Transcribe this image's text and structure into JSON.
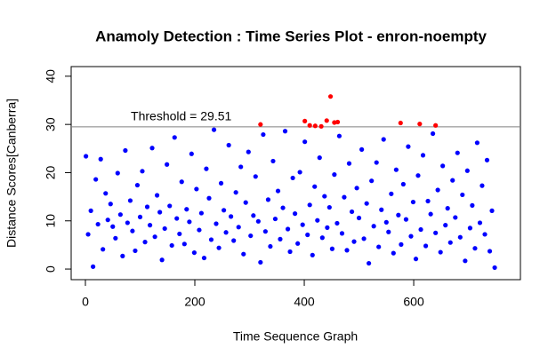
{
  "chart_data": {
    "type": "scatter",
    "title": "Anamoly Detection : Time Series Plot - enron-noempty",
    "x_label": "Time Sequence Graph",
    "y_label": "Distance Scores[Canberra]",
    "color": "#0000ff",
    "above_color": "#ff0000",
    "threshold": 29.51,
    "threshold_label": "Threshold = 29.51",
    "threshold_color": "#ff0000",
    "threshold_line_color": "#808080",
    "x": [
      1,
      5,
      10,
      14,
      19,
      23,
      28,
      32,
      37,
      41,
      46,
      50,
      55,
      59,
      64,
      68,
      73,
      77,
      82,
      86,
      91,
      95,
      100,
      104,
      109,
      113,
      118,
      122,
      127,
      131,
      136,
      140,
      145,
      149,
      154,
      158,
      163,
      167,
      172,
      176,
      181,
      185,
      190,
      194,
      199,
      203,
      208,
      212,
      217,
      221,
      226,
      230,
      235,
      239,
      244,
      248,
      253,
      257,
      262,
      266,
      271,
      275,
      280,
      284,
      289,
      293,
      298,
      302,
      307,
      311,
      316,
      320,
      325,
      329,
      334,
      338,
      343,
      347,
      352,
      356,
      361,
      365,
      370,
      374,
      379,
      383,
      388,
      392,
      397,
      401,
      406,
      410,
      415,
      419,
      424,
      428,
      433,
      437,
      442,
      446,
      451,
      455,
      460,
      464,
      469,
      473,
      478,
      482,
      487,
      491,
      496,
      500,
      505,
      509,
      514,
      518,
      523,
      527,
      532,
      536,
      541,
      545,
      550,
      554,
      559,
      563,
      568,
      572,
      577,
      581,
      586,
      590,
      595,
      599,
      604,
      608,
      613,
      617,
      622,
      626,
      631,
      635,
      640,
      644,
      649,
      653,
      658,
      662,
      667,
      671,
      676,
      680,
      685,
      689,
      694,
      698,
      703,
      707,
      712,
      716,
      721,
      725,
      730,
      734,
      739,
      743,
      748,
      320,
      401,
      410,
      420,
      431,
      441,
      448,
      455,
      461,
      576,
      611,
      640
    ],
    "values": [
      23.4,
      7.2,
      12.1,
      0.5,
      18.6,
      9.3,
      22.8,
      4.1,
      15.7,
      10.2,
      13.5,
      8.8,
      6.4,
      19.9,
      11.3,
      2.7,
      24.6,
      9.6,
      14.2,
      7.9,
      3.8,
      17.4,
      10.8,
      20.3,
      5.6,
      12.9,
      9.1,
      25.1,
      6.7,
      15.3,
      11.8,
      1.9,
      8.4,
      21.7,
      13.1,
      4.9,
      27.3,
      10.5,
      7.3,
      18.1,
      5.2,
      12.4,
      9.8,
      23.9,
      3.4,
      16.6,
      8.1,
      11.6,
      2.3,
      20.8,
      14.7,
      6.1,
      28.9,
      9.4,
      4.4,
      17.8,
      12.2,
      7.6,
      25.7,
      10.9,
      5.9,
      15.9,
      8.7,
      21.2,
      3.1,
      13.8,
      24.3,
      6.9,
      11.1,
      19.2,
      9.9,
      1.4,
      27.9,
      7.8,
      14.4,
      4.7,
      22.4,
      10.4,
      16.2,
      6.2,
      12.7,
      28.6,
      8.3,
      3.6,
      18.9,
      11.5,
      5.3,
      20.1,
      9.2,
      26.4,
      7.1,
      13.3,
      2.9,
      17.1,
      10.1,
      23.1,
      6.5,
      15.1,
      8.6,
      12.8,
      4.2,
      19.6,
      9.5,
      27.6,
      7.4,
      14.9,
      3.9,
      21.9,
      11.9,
      5.7,
      16.8,
      10.6,
      24.8,
      6.3,
      13.6,
      1.2,
      18.3,
      8.9,
      22.1,
      4.6,
      12.3,
      26.9,
      9.7,
      7.7,
      15.6,
      3.3,
      20.6,
      11.2,
      5.1,
      17.6,
      10.3,
      25.4,
      6.8,
      13.9,
      2.1,
      19.4,
      8.2,
      23.6,
      4.8,
      14.1,
      11.4,
      28.1,
      7.5,
      16.4,
      3.5,
      21.4,
      9.1,
      12.6,
      5.5,
      18.4,
      10.7,
      24.1,
      6.6,
      15.4,
      1.7,
      20.4,
      8.5,
      13.2,
      4.3,
      26.2,
      9.6,
      17.3,
      7.2,
      22.6,
      3.7,
      12.1,
      0.3,
      30.0,
      30.7,
      29.8,
      29.7,
      29.6,
      30.8,
      35.8,
      30.4,
      30.5,
      30.3,
      30.1,
      29.8
    ],
    "xlim": [
      -26,
      795
    ],
    "ylim": [
      -2.2,
      42
    ],
    "xticks": [
      0,
      200,
      400,
      600
    ],
    "yticks": [
      0,
      10,
      20,
      30,
      40
    ]
  }
}
